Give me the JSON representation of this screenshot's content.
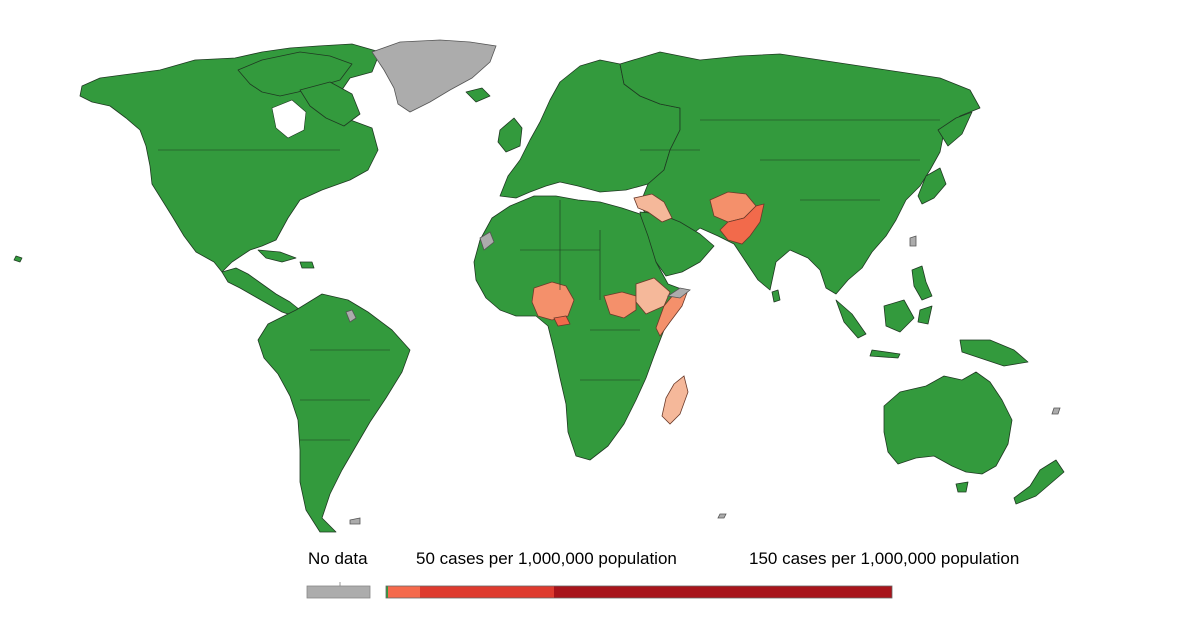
{
  "legend": {
    "no_data_label": "No data",
    "low_label": "50 cases per 1,000,000 population",
    "high_label": "150 cases per 1,000,000 population",
    "colors": {
      "no_data": "#acacac",
      "zero": "#339a3d",
      "band_1": "#f56a4c",
      "band_2": "#de3a2e",
      "band_3": "#a8141b",
      "light": "#f5b89a",
      "medium": "#f4906b",
      "high": "#f26a4b"
    },
    "scale_stops": [
      0,
      50,
      150
    ]
  },
  "map": {
    "colored_regions": [
      {
        "name": "Pakistan",
        "level": "high"
      },
      {
        "name": "Afghanistan",
        "level": "medium"
      },
      {
        "name": "Nigeria",
        "level": "medium"
      },
      {
        "name": "South Sudan",
        "level": "medium"
      },
      {
        "name": "Ethiopia",
        "level": "light"
      },
      {
        "name": "Somalia",
        "level": "medium"
      },
      {
        "name": "Syria",
        "level": "light"
      },
      {
        "name": "Iraq",
        "level": "light"
      },
      {
        "name": "Madagascar",
        "level": "light"
      },
      {
        "name": "Cameroon",
        "level": "high"
      }
    ],
    "no_data_regions": [
      "Greenland",
      "Western Sahara",
      "French Guiana",
      "Somaliland",
      "Taiwan"
    ]
  }
}
